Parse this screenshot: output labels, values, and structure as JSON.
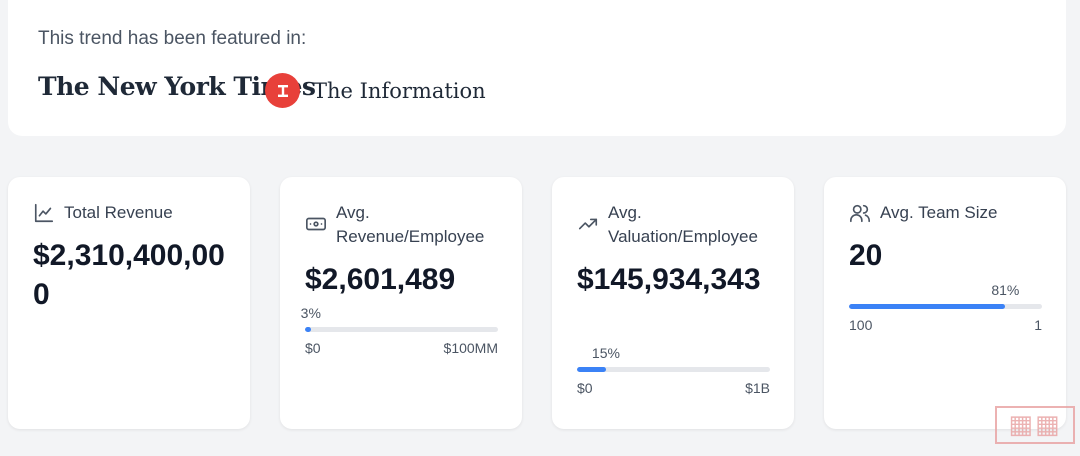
{
  "featured": {
    "title": "This trend has been featured in:",
    "logos": [
      {
        "name": "The New York Times",
        "icon": "nyt-logo"
      },
      {
        "name": "The Information",
        "icon": "the-information-logo",
        "mark_color": "#e8403a"
      }
    ]
  },
  "cards": [
    {
      "label": "Total Revenue",
      "icon": "line-chart-icon",
      "value": "$2,310,400,000"
    },
    {
      "label": "Avg. Revenue/Employee",
      "icon": "money-icon",
      "value": "$2,601,489",
      "bar": {
        "percent_label": "3%",
        "fraction": 0.03,
        "min_label": "$0",
        "max_label": "$100MM"
      }
    },
    {
      "label": "Avg. Valuation/Employee",
      "icon": "trending-up-icon",
      "value": "$145,934,343",
      "bar": {
        "percent_label": "15%",
        "fraction": 0.15,
        "min_label": "$0",
        "max_label": "$1B"
      }
    },
    {
      "label": "Avg. Team Size",
      "icon": "users-icon",
      "value": "20",
      "bar": {
        "percent_label": "81%",
        "fraction": 0.81,
        "min_label": "100",
        "max_label": "1"
      }
    }
  ],
  "colors": {
    "accent": "#3b82f6",
    "track": "#e5e7eb"
  }
}
